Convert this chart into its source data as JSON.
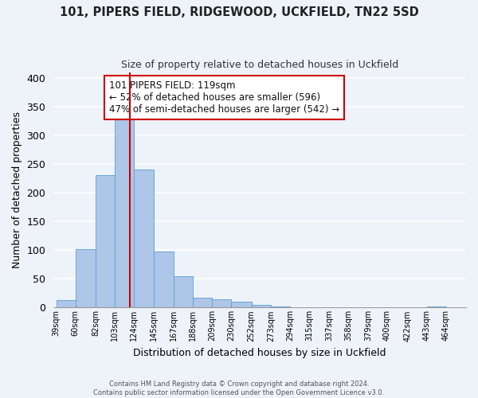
{
  "title": "101, PIPERS FIELD, RIDGEWOOD, UCKFIELD, TN22 5SD",
  "subtitle": "Size of property relative to detached houses in Uckfield",
  "xlabel": "Distribution of detached houses by size in Uckfield",
  "ylabel": "Number of detached properties",
  "bar_edges": [
    39,
    60,
    82,
    103,
    124,
    145,
    167,
    188,
    209,
    230,
    252,
    273,
    294,
    315,
    337,
    358,
    379,
    400,
    422,
    443,
    464
  ],
  "bar_heights": [
    13,
    102,
    230,
    327,
    240,
    97,
    55,
    17,
    14,
    10,
    5,
    2,
    0,
    0,
    0,
    0,
    0,
    0,
    0,
    2
  ],
  "bar_color": "#aec6e8",
  "bar_edgecolor": "#5a9fd4",
  "vline_x": 119,
  "vline_color": "#cc0000",
  "annotation_line1": "101 PIPERS FIELD: 119sqm",
  "annotation_line2": "← 52% of detached houses are smaller (596)",
  "annotation_line3": "47% of semi-detached houses are larger (542) →",
  "ylim": [
    0,
    410
  ],
  "yticks": [
    0,
    50,
    100,
    150,
    200,
    250,
    300,
    350,
    400
  ],
  "bg_color": "#eef2f9",
  "grid_color": "#ffffff",
  "footer_line1": "Contains HM Land Registry data © Crown copyright and database right 2024.",
  "footer_line2": "Contains public sector information licensed under the Open Government Licence v3.0.",
  "tick_labels": [
    "39sqm",
    "60sqm",
    "82sqm",
    "103sqm",
    "124sqm",
    "145sqm",
    "167sqm",
    "188sqm",
    "209sqm",
    "230sqm",
    "252sqm",
    "273sqm",
    "294sqm",
    "315sqm",
    "337sqm",
    "358sqm",
    "379sqm",
    "400sqm",
    "422sqm",
    "443sqm",
    "464sqm"
  ]
}
